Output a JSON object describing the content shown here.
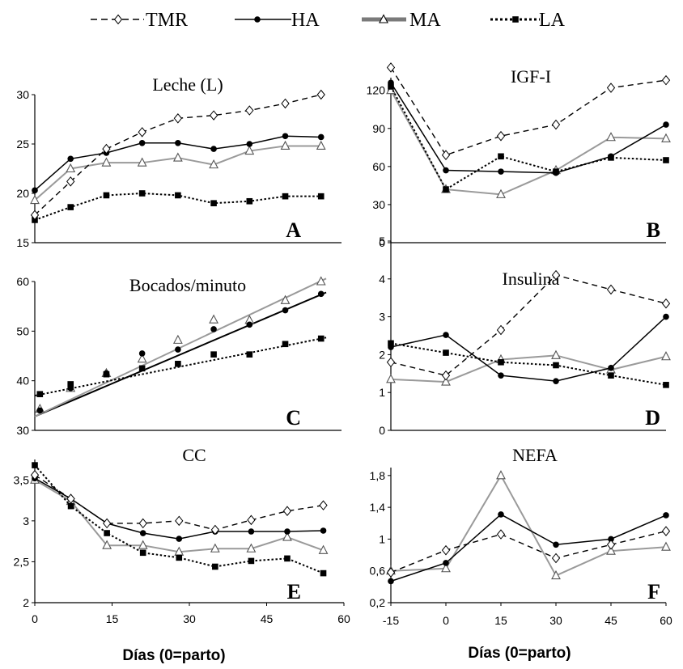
{
  "legend": [
    {
      "name": "TMR",
      "style": "dashed",
      "marker": "diamond",
      "color": "#000000"
    },
    {
      "name": "HA",
      "style": "solid",
      "marker": "circle",
      "color": "#000000"
    },
    {
      "name": "MA",
      "style": "solid-thick-gray",
      "marker": "triangle",
      "color": "#888888"
    },
    {
      "name": "LA",
      "style": "dotted",
      "marker": "square",
      "color": "#000000"
    }
  ],
  "xlabel": "Días (0=parto)",
  "chart_data": [
    {
      "id": "A",
      "type": "line",
      "title": "Leche (L)",
      "panel_letter": "A",
      "xlim": [
        0,
        60
      ],
      "ylim": [
        15,
        30
      ],
      "yticks": [
        "15",
        "20",
        "25",
        "30"
      ],
      "xticks": [],
      "series": [
        {
          "name": "TMR",
          "x": [
            0,
            7,
            14,
            21,
            28,
            35,
            42,
            49,
            56
          ],
          "values": [
            17.8,
            21.2,
            24.5,
            26.2,
            27.6,
            27.9,
            28.4,
            29.1,
            30.0
          ]
        },
        {
          "name": "HA",
          "x": [
            0,
            7,
            14,
            21,
            28,
            35,
            42,
            49,
            56
          ],
          "values": [
            20.3,
            23.5,
            24.1,
            25.1,
            25.1,
            24.5,
            25.0,
            25.8,
            25.7
          ]
        },
        {
          "name": "MA",
          "x": [
            0,
            7,
            14,
            21,
            28,
            35,
            42,
            49,
            56
          ],
          "values": [
            19.3,
            22.5,
            23.1,
            23.1,
            23.6,
            22.9,
            24.3,
            24.8,
            24.8
          ]
        },
        {
          "name": "LA",
          "x": [
            0,
            7,
            14,
            21,
            28,
            35,
            42,
            49,
            56
          ],
          "values": [
            17.3,
            18.6,
            19.8,
            20.0,
            19.8,
            19.0,
            19.2,
            19.7,
            19.7
          ]
        }
      ]
    },
    {
      "id": "B",
      "type": "line",
      "title": "IGF-I",
      "panel_letter": "B",
      "xlim": [
        -15,
        60
      ],
      "ylim": [
        0,
        130
      ],
      "yticks": [
        "0",
        "30",
        "60",
        "90",
        "120"
      ],
      "xticks": [],
      "series": [
        {
          "name": "TMR",
          "x": [
            -15,
            0,
            15,
            30,
            45,
            60
          ],
          "values": [
            138,
            69,
            84,
            93,
            122,
            128
          ]
        },
        {
          "name": "HA",
          "x": [
            -15,
            0,
            15,
            30,
            45,
            60
          ],
          "values": [
            126,
            57,
            56,
            55,
            68,
            93
          ]
        },
        {
          "name": "MA",
          "x": [
            -15,
            0,
            15,
            30,
            45,
            60
          ],
          "values": [
            120,
            42,
            38,
            57,
            83,
            82
          ]
        },
        {
          "name": "LA",
          "x": [
            -15,
            0,
            15,
            30,
            45,
            60
          ],
          "values": [
            123,
            42,
            68,
            56,
            67,
            65
          ]
        }
      ]
    },
    {
      "id": "C",
      "type": "line",
      "title": "Bocados/minuto",
      "panel_letter": "C",
      "xlim": [
        0,
        60
      ],
      "ylim": [
        30,
        60
      ],
      "yticks": [
        "30",
        "40",
        "50",
        "60"
      ],
      "xticks": [],
      "series": [
        {
          "name": "HA",
          "x": [
            1,
            7,
            14,
            21,
            28,
            35,
            42,
            49,
            56
          ],
          "values": [
            34.0,
            38.5,
            41.5,
            45.5,
            46.3,
            50.4,
            51.3,
            54.2,
            57.5
          ]
        },
        {
          "name": "MA",
          "x": [
            1,
            7,
            14,
            21,
            28,
            35,
            42,
            49,
            56
          ],
          "values": [
            34.3,
            38.5,
            41.5,
            44.4,
            48.2,
            52.3,
            52.2,
            56.2,
            60.0
          ]
        },
        {
          "name": "LA",
          "x": [
            1,
            7,
            14,
            21,
            28,
            35,
            42,
            49,
            56
          ],
          "values": [
            37.3,
            39.3,
            41.3,
            42.5,
            43.4,
            45.3,
            45.3,
            47.4,
            48.5
          ]
        }
      ],
      "trendlines": [
        {
          "name": "HA",
          "x": [
            0,
            57
          ],
          "values": [
            32.8,
            57.8
          ]
        },
        {
          "name": "MA",
          "x": [
            0,
            57
          ],
          "values": [
            32.8,
            60.6
          ]
        },
        {
          "name": "LA",
          "x": [
            0,
            57
          ],
          "values": [
            37.0,
            48.7
          ]
        }
      ]
    },
    {
      "id": "D",
      "type": "line",
      "title": "Insulina",
      "panel_letter": "D",
      "xlim": [
        -15,
        60
      ],
      "ylim": [
        0,
        5
      ],
      "yticks": [
        "0",
        "1",
        "2",
        "3",
        "4",
        "5"
      ],
      "xticks": [],
      "series": [
        {
          "name": "TMR",
          "x": [
            -15,
            0,
            15,
            30,
            45,
            60
          ],
          "values": [
            1.8,
            1.45,
            2.65,
            4.1,
            3.72,
            3.35
          ]
        },
        {
          "name": "HA",
          "x": [
            -15,
            0,
            15,
            30,
            45,
            60
          ],
          "values": [
            2.2,
            2.52,
            1.45,
            1.3,
            1.65,
            3.0
          ]
        },
        {
          "name": "MA",
          "x": [
            -15,
            0,
            15,
            30,
            45,
            60
          ],
          "values": [
            1.35,
            1.28,
            1.87,
            1.98,
            1.6,
            1.95
          ]
        },
        {
          "name": "LA",
          "x": [
            -15,
            0,
            15,
            30,
            45,
            60
          ],
          "values": [
            2.3,
            2.05,
            1.8,
            1.72,
            1.45,
            1.2
          ]
        }
      ]
    },
    {
      "id": "E",
      "type": "line",
      "title": "CC",
      "panel_letter": "E",
      "xlim": [
        0,
        60
      ],
      "ylim": [
        2,
        3.75
      ],
      "yticks": [
        "2",
        "2,5",
        "3",
        "3,5"
      ],
      "xticks": [
        "0",
        "15",
        "30",
        "45",
        "60"
      ],
      "series": [
        {
          "name": "TMR",
          "x": [
            0,
            7,
            14,
            21,
            28,
            35,
            42,
            49,
            56
          ],
          "values": [
            3.56,
            3.27,
            2.97,
            2.97,
            3.0,
            2.89,
            3.01,
            3.12,
            3.19
          ]
        },
        {
          "name": "HA",
          "x": [
            0,
            7,
            14,
            21,
            28,
            35,
            42,
            49,
            56
          ],
          "values": [
            3.52,
            3.27,
            2.97,
            2.85,
            2.78,
            2.87,
            2.87,
            2.87,
            2.88
          ]
        },
        {
          "name": "MA",
          "x": [
            0,
            7,
            14,
            21,
            28,
            35,
            42,
            49,
            56
          ],
          "values": [
            3.5,
            3.24,
            2.7,
            2.7,
            2.62,
            2.66,
            2.66,
            2.8,
            2.64
          ]
        },
        {
          "name": "LA",
          "x": [
            0,
            7,
            14,
            21,
            28,
            35,
            42,
            49,
            56
          ],
          "values": [
            3.68,
            3.18,
            2.85,
            2.61,
            2.55,
            2.44,
            2.51,
            2.54,
            2.36
          ]
        }
      ]
    },
    {
      "id": "F",
      "type": "line",
      "title": "NEFA",
      "panel_letter": "F",
      "xlim": [
        -15,
        60
      ],
      "ylim": [
        0.2,
        1.9
      ],
      "yticks": [
        "0,2",
        "0,6",
        "1",
        "1,4",
        "1,8"
      ],
      "xticks": [
        "-15",
        "0",
        "15",
        "30",
        "45",
        "60"
      ],
      "series": [
        {
          "name": "TMR",
          "x": [
            -15,
            0,
            15,
            30,
            45,
            60
          ],
          "values": [
            0.58,
            0.86,
            1.06,
            0.76,
            0.93,
            1.1
          ]
        },
        {
          "name": "HA",
          "x": [
            -15,
            0,
            15,
            30,
            45,
            60
          ],
          "values": [
            0.47,
            0.7,
            1.31,
            0.93,
            1.0,
            1.3
          ]
        },
        {
          "name": "MA",
          "x": [
            -15,
            0,
            15,
            30,
            45,
            60
          ],
          "values": [
            0.6,
            0.63,
            1.8,
            0.54,
            0.85,
            0.9
          ]
        }
      ]
    }
  ]
}
